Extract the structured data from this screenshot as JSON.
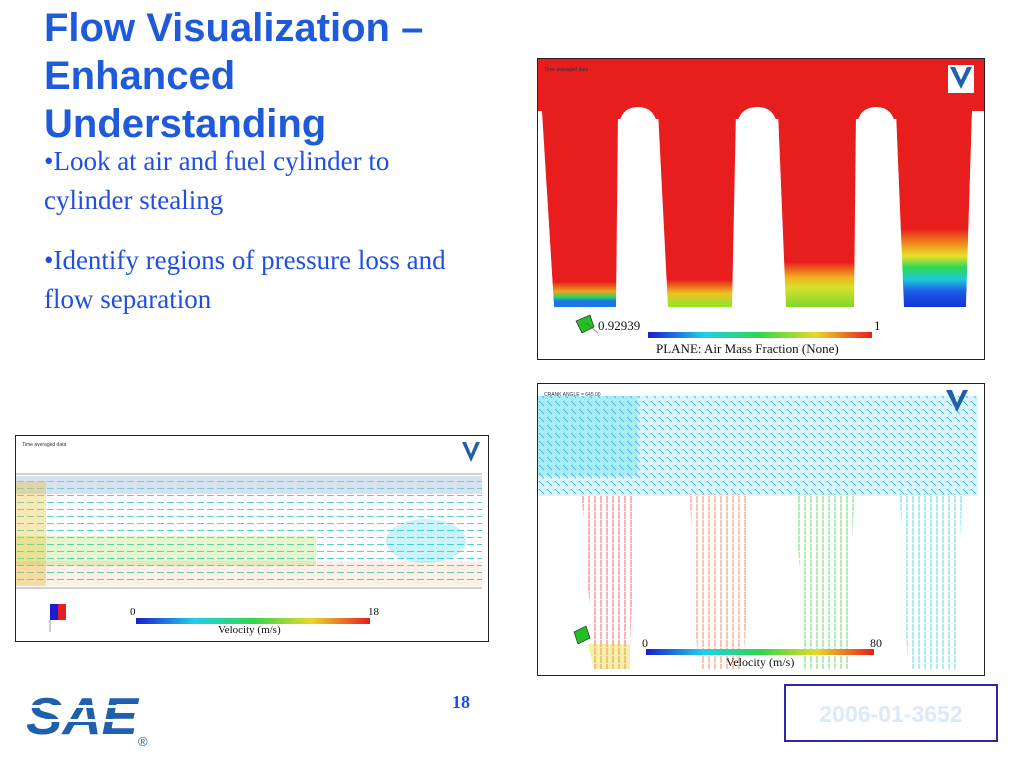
{
  "slide": {
    "title": "Flow Visualization – Enhanced Understanding",
    "bullets": [
      "•Look at air and fuel cylinder to cylinder stealing",
      "•Identify regions of pressure loss and flow separation"
    ],
    "page_number": "18",
    "paper_id": "2006-01-3652",
    "logo_text": "SAE",
    "logo_mark": "®"
  },
  "figures": {
    "air_mass": {
      "min_label": "0.92939",
      "max_label": "1",
      "colorbar_label": "PLANE: Air Mass Fraction (None)",
      "caption_small": "Time averaged data"
    },
    "velocity_left": {
      "min_label": "0",
      "max_label": "18",
      "colorbar_label": "Velocity (m/s)",
      "caption_small": "Time averaged data"
    },
    "velocity_right": {
      "min_label": "0",
      "max_label": "80",
      "colorbar_label": "Velocity (m/s)",
      "caption_small": "CRANK ANGLE = 645.00"
    }
  },
  "colors": {
    "title": "#1f5bd8",
    "bullet_text": "#1f4fe0",
    "sae_blue": "#1f5fae",
    "paper_id_border": "#2a2aa8"
  },
  "icons": [
    "sae-logo",
    "vector-logo",
    "axis-triad-icon"
  ]
}
